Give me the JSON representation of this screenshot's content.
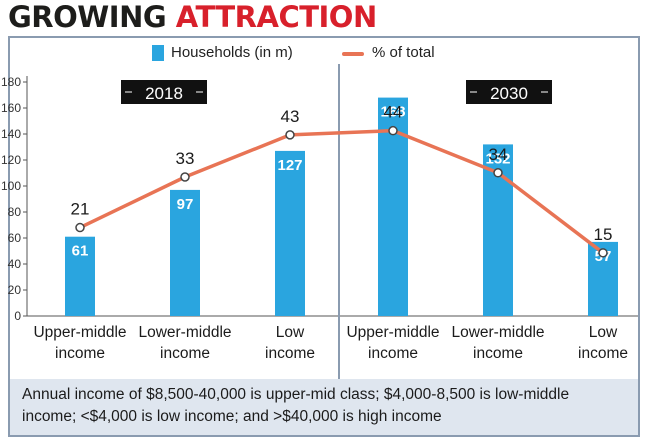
{
  "header": {
    "title_part1": "GROWING",
    "title_part2": "ATTRACTION"
  },
  "legend": {
    "bars_label": "Households (in m)",
    "line_label": "% of total"
  },
  "footnote": "Annual income of $8,500-40,000 is upper-mid class; $4,000-8,500 is low-middle income; <$4,000 is low income; and >$40,000 is high income",
  "colors": {
    "bar": "#2aa5df",
    "line": "#e87455",
    "title_dark": "#1d1d1b",
    "title_red": "#d8202b",
    "year_tag_bg": "#111111",
    "footnote_bg": "#dfe6ef"
  },
  "chart_data": {
    "type": "bar",
    "ylim": [
      0,
      180
    ],
    "yticks": [
      0,
      20,
      40,
      60,
      80,
      100,
      120,
      140,
      160,
      180
    ],
    "grid": false,
    "legend_position": "top",
    "groups": [
      {
        "year": "2018",
        "categories": [
          [
            "Upper-middle",
            "income"
          ],
          [
            "Lower-middle",
            "income"
          ],
          [
            "Low",
            "income"
          ]
        ],
        "households": [
          61,
          97,
          127
        ],
        "percent_of_total": [
          21,
          33,
          43
        ]
      },
      {
        "year": "2030",
        "categories": [
          [
            "Upper-middle",
            "income"
          ],
          [
            "Lower-middle",
            "income"
          ],
          [
            "Low",
            "income"
          ]
        ],
        "households": [
          168,
          132,
          57
        ],
        "percent_of_total": [
          44,
          34,
          15
        ]
      }
    ]
  }
}
